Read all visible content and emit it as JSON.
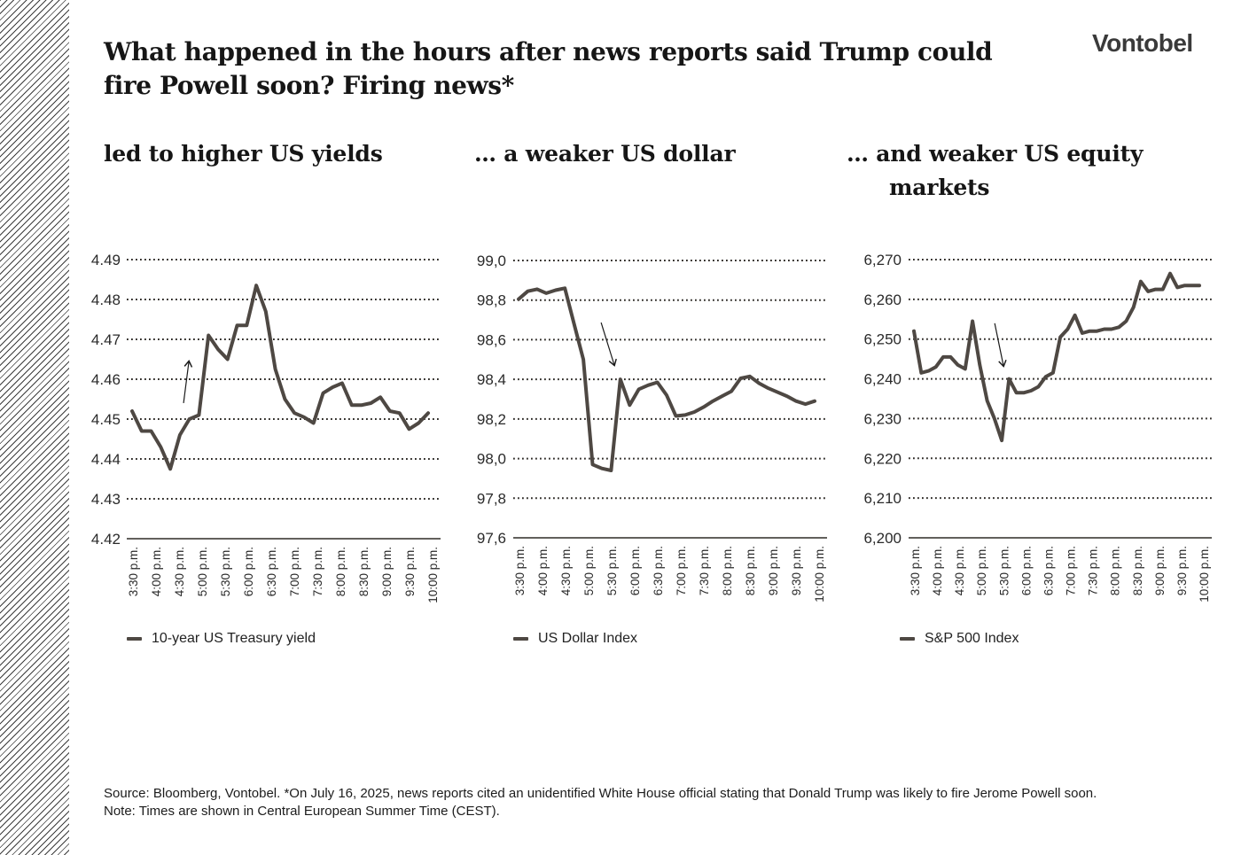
{
  "logo": "Vontobel",
  "title_lines": [
    "What happened in the hours after news reports said Trump could",
    "fire Powell soon? Firing news*"
  ],
  "colors": {
    "line": "#4e4843",
    "grid": "#2e2b27",
    "axis_text": "#2a2a2a",
    "arrow": "#1a1a1a"
  },
  "chart_data": [
    {
      "type": "line",
      "title": "led to higher US yields",
      "series": [
        {
          "name": "10-year US Treasury yield",
          "values": [
            4.452,
            4.447,
            4.447,
            4.443,
            4.4375,
            4.446,
            4.45,
            4.451,
            4.471,
            4.4675,
            4.465,
            4.4735,
            4.4735,
            4.4835,
            4.477,
            4.4625,
            4.455,
            4.4515,
            4.4505,
            4.449,
            4.4565,
            4.458,
            4.459,
            4.4535,
            4.4535,
            4.454,
            4.4555,
            4.452,
            4.4515,
            4.4475,
            4.449,
            4.4515
          ]
        }
      ],
      "x_ticks": [
        "3:30 p.m.",
        "4:00 p.m.",
        "4:30 p.m.",
        "5:00 p.m.",
        "5:30 p.m.",
        "6:00 p.m.",
        "6:30 p.m.",
        "7:00 p.m.",
        "7:30 p.m.",
        "8:00 p.m.",
        "8:30 p.m.",
        "9:00 p.m.",
        "9:30 p.m.",
        "10:00 p.m."
      ],
      "y_ticks": [
        "4.49",
        "4.48",
        "4.47",
        "4.46",
        "4.45",
        "4.44",
        "4.43",
        "4.42"
      ],
      "ylim": [
        4.42,
        4.49
      ],
      "grid": "dotted-horizontal",
      "legend_position": "bottom-left",
      "annotation_arrow": "up"
    },
    {
      "type": "line",
      "title": "… a weaker US dollar",
      "series": [
        {
          "name": "US Dollar Index",
          "values": [
            98.805,
            98.845,
            98.855,
            98.835,
            98.85,
            98.86,
            98.68,
            98.5,
            97.97,
            97.95,
            97.94,
            98.4,
            98.27,
            98.35,
            98.37,
            98.385,
            98.32,
            98.215,
            98.22,
            98.235,
            98.26,
            98.29,
            98.315,
            98.34,
            98.405,
            98.415,
            98.38,
            98.355,
            98.335,
            98.315,
            98.29,
            98.275,
            98.29
          ]
        }
      ],
      "x_ticks": [
        "3:30 p.m.",
        "4:00 p.m.",
        "4:30 p.m.",
        "5:00 p.m.",
        "5:30 p.m.",
        "6:00 p.m.",
        "6:30 p.m.",
        "7:00 p.m.",
        "7:30 p.m.",
        "8:00 p.m.",
        "8:30 p.m.",
        "9:00 p.m.",
        "9:30 p.m.",
        "10:00 p.m."
      ],
      "y_ticks": [
        "99,0",
        "98,8",
        "98,6",
        "98,4",
        "98,2",
        "98,0",
        "97,8",
        "97,6"
      ],
      "ylim": [
        97.6,
        99.0
      ],
      "grid": "dotted-horizontal",
      "legend_position": "bottom-left",
      "annotation_arrow": "down"
    },
    {
      "type": "line",
      "title": "… and weaker US equity markets",
      "title_lines": [
        "… and weaker US equity",
        "markets"
      ],
      "series": [
        {
          "name": "S&P 500 Index",
          "values": [
            6252,
            6241.5,
            6242,
            6243,
            6245.5,
            6245.5,
            6243.5,
            6242.5,
            6254.5,
            6243.5,
            6234.5,
            6230,
            6224.5,
            6240,
            6236.5,
            6236.5,
            6237,
            6238,
            6240.5,
            6241.5,
            6250.5,
            6252.5,
            6256,
            6251.5,
            6252,
            6252,
            6252.5,
            6252.5,
            6253,
            6254.5,
            6258,
            6264.5,
            6262,
            6262.5,
            6262.5,
            6266.5,
            6263,
            6263.5,
            6263.5,
            6263.5
          ]
        }
      ],
      "x_ticks": [
        "3:30 p.m.",
        "4:00 p.m.",
        "4:30 p.m.",
        "5:00 p.m.",
        "5:30 p.m.",
        "6:00 p.m.",
        "6:30 p.m.",
        "7:00 p.m.",
        "7:30 p.m.",
        "8:00 p.m.",
        "8:30 p.m.",
        "9:00 p.m.",
        "9:30 p.m.",
        "10:00 p.m."
      ],
      "y_ticks": [
        "6,270",
        "6,260",
        "6,250",
        "6,240",
        "6,230",
        "6,220",
        "6,210",
        "6,200"
      ],
      "ylim": [
        6200,
        6270
      ],
      "grid": "dotted-horizontal",
      "legend_position": "bottom-left",
      "annotation_arrow": "down"
    }
  ],
  "footer": {
    "source": "Source: Bloomberg, Vontobel. *On July 16, 2025, news reports cited an unidentified White House official stating that Donald Trump was likely to fire Jerome Powell soon.",
    "note": "Note: Times are shown in Central European Summer Time (CEST)."
  }
}
